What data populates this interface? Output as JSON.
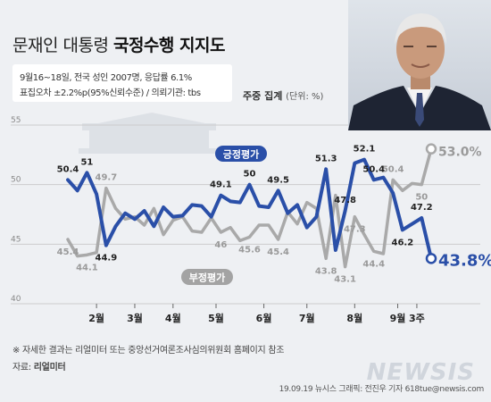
{
  "header": {
    "title_prefix": "문재인 대통령 ",
    "title_bold": "국정수행 지지도",
    "info_line1": "9월16~18일, 전국 성인 2007명, 응답률 6.1%",
    "info_line2": "표집오차 ±2.2%p(95%신뢰수준) / 의뢰기관: tbs",
    "subtitle": "주중 집계",
    "unit": "(단위: %)"
  },
  "footer": {
    "note": "※ 자세한 결과는 리얼미터 또는 중앙선거여론조사심의위원회 홈페이지 참조",
    "source_label": "자료:",
    "source_value": "리얼미터",
    "credit": "19.09.19 뉴시스 그래픽: 전진우 기자 618tue@newsis.com",
    "watermark": "NEWSIS"
  },
  "colors": {
    "positive": "#2a4fa8",
    "negative": "#a9a9a9",
    "background": "#eef0f3",
    "grid": "#cccccc"
  },
  "chart_data": {
    "type": "line",
    "ylim": [
      40,
      55
    ],
    "yticks": [
      "40",
      "45",
      "50",
      "55"
    ],
    "grid": true,
    "months": [
      {
        "label": "2월",
        "x": 3
      },
      {
        "label": "3월",
        "x": 7
      },
      {
        "label": "4월",
        "x": 11
      },
      {
        "label": "5월",
        "x": 15.5
      },
      {
        "label": "6월",
        "x": 20.5
      },
      {
        "label": "7월",
        "x": 25
      },
      {
        "label": "8월",
        "x": 30
      },
      {
        "label": "9월",
        "x": 34.5
      },
      {
        "label": "3주",
        "x": 36.5
      }
    ],
    "series": [
      {
        "name": "긍정평가",
        "end_label": "43.8%",
        "values": [
          50.4,
          49.5,
          51,
          49.2,
          44.9,
          46.5,
          47.6,
          47.1,
          47.8,
          46.5,
          48.1,
          47.3,
          47.4,
          48.3,
          48.2,
          47.3,
          49.1,
          48.6,
          48.5,
          50,
          48.2,
          48.1,
          49.5,
          47.6,
          48.3,
          46.4,
          47.3,
          51.3,
          44.5,
          47.8,
          51.8,
          52.1,
          50.4,
          50.6,
          49.3,
          46.2,
          46.7,
          47.2,
          43.8
        ],
        "labels": [
          {
            "i": 0,
            "text": "50.4",
            "pos": "above"
          },
          {
            "i": 2,
            "text": "51",
            "pos": "above"
          },
          {
            "i": 4,
            "text": "44.9",
            "pos": "below"
          },
          {
            "i": 16,
            "text": "49.1",
            "pos": "above"
          },
          {
            "i": 19,
            "text": "50",
            "pos": "above"
          },
          {
            "i": 22,
            "text": "49.5",
            "pos": "above"
          },
          {
            "i": 27,
            "text": "51.3",
            "pos": "above"
          },
          {
            "i": 29,
            "text": "47.8",
            "pos": "above"
          },
          {
            "i": 31,
            "text": "52.1",
            "pos": "above"
          },
          {
            "i": 32,
            "text": "50.4",
            "pos": "above"
          },
          {
            "i": 35,
            "text": "46.2",
            "pos": "below"
          },
          {
            "i": 37,
            "text": "47.2",
            "pos": "above"
          }
        ]
      },
      {
        "name": "부정평가",
        "end_label": "53.0%",
        "values": [
          45.4,
          44.0,
          44.1,
          44.3,
          49.7,
          48.0,
          47.1,
          47.3,
          46.6,
          48.0,
          45.8,
          47.0,
          47.3,
          46.1,
          46.0,
          47.2,
          46.0,
          46.4,
          45.3,
          45.6,
          46.6,
          46.6,
          45.4,
          47.7,
          46.7,
          48.5,
          48.0,
          43.8,
          49.1,
          43.1,
          47.3,
          45.8,
          44.4,
          44.2,
          50.4,
          49.5,
          50.1,
          50.0,
          53.0
        ],
        "labels": [
          {
            "i": 0,
            "text": "45.4",
            "pos": "below"
          },
          {
            "i": 2,
            "text": "44.1",
            "pos": "below"
          },
          {
            "i": 4,
            "text": "49.7",
            "pos": "above"
          },
          {
            "i": 16,
            "text": "46",
            "pos": "below"
          },
          {
            "i": 19,
            "text": "45.6",
            "pos": "below"
          },
          {
            "i": 22,
            "text": "45.4",
            "pos": "below"
          },
          {
            "i": 27,
            "text": "43.8",
            "pos": "below"
          },
          {
            "i": 29,
            "text": "43.1",
            "pos": "below"
          },
          {
            "i": 30,
            "text": "47.3",
            "pos": "below"
          },
          {
            "i": 32,
            "text": "44.4",
            "pos": "below"
          },
          {
            "i": 34,
            "text": "50.4",
            "pos": "above"
          },
          {
            "i": 37,
            "text": "50",
            "pos": "below"
          }
        ]
      }
    ]
  }
}
